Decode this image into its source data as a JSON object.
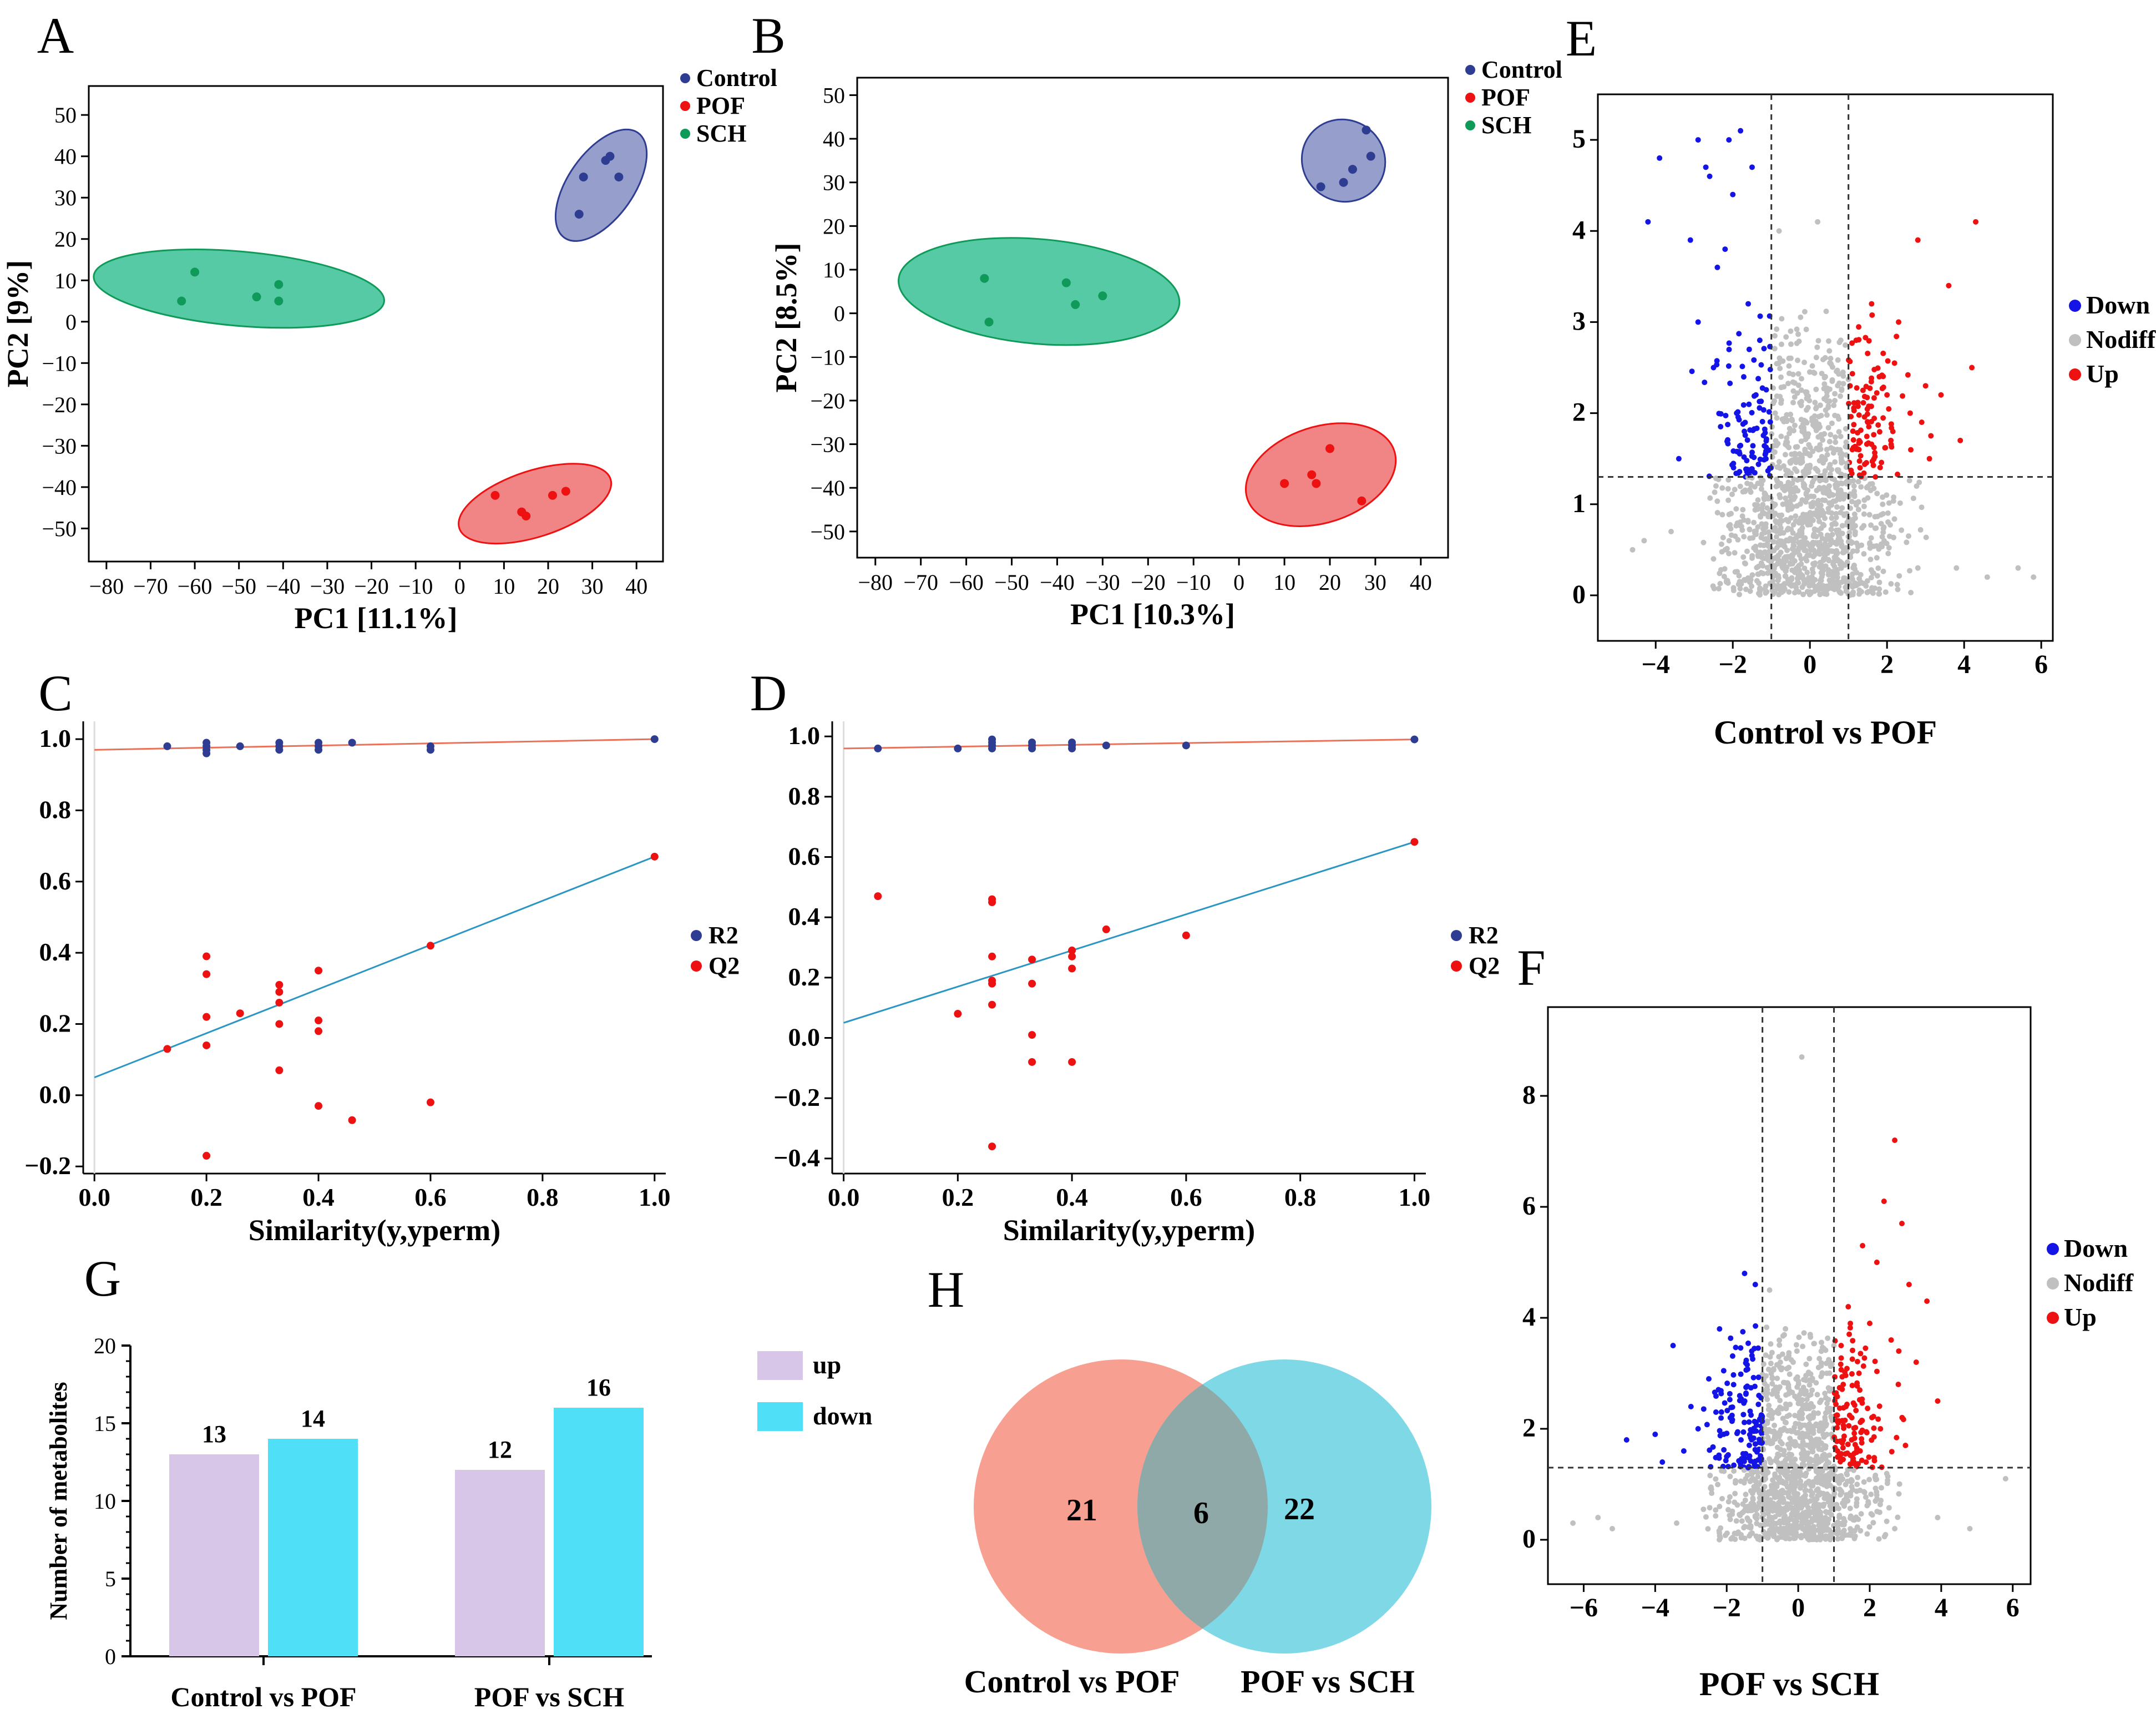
{
  "panel_labels": {
    "A": "A",
    "B": "B",
    "C": "C",
    "D": "D",
    "E": "E",
    "F": "F",
    "G": "G",
    "H": "H"
  },
  "colors": {
    "control": "#2e3d91",
    "pof": "#ee1111",
    "sch": "#0f9a5a",
    "control_fill": "#8b93c7",
    "pof_fill": "#f07777",
    "sch_fill": "#44c49a",
    "down": "#1414e6",
    "nodiff": "#c0c0c0",
    "up": "#ee1111",
    "r2": "#2e3d91",
    "q2": "#ee1111",
    "r2_line": "#e8735a",
    "q2_line": "#2b96c4",
    "bar_up": "#d7c6e8",
    "bar_down": "#4fe0f7",
    "venn_left": "#f7a091",
    "venn_right": "#7ed8e6",
    "venn_overlap": "#8fa8a8"
  },
  "chart_data": [
    {
      "id": "A",
      "type": "scatter",
      "title": "",
      "xlabel": "PC1 [11.1%]",
      "ylabel": "PC2 [9%]",
      "xlim": [
        -84,
        46
      ],
      "ylim": [
        -58,
        57
      ],
      "xticks": [
        -80,
        -70,
        -60,
        -50,
        -40,
        -30,
        -20,
        -10,
        0,
        10,
        20,
        30,
        40
      ],
      "yticks": [
        -50,
        -40,
        -30,
        -20,
        -10,
        0,
        10,
        20,
        30,
        40,
        50
      ],
      "legend": [
        "Control",
        "POF",
        "SCH"
      ],
      "series": [
        {
          "name": "Control",
          "x": [
            27,
            28,
            33,
            34,
            36
          ],
          "y": [
            26,
            35,
            39,
            40,
            35
          ]
        },
        {
          "name": "POF",
          "x": [
            8,
            14,
            15,
            21,
            24
          ],
          "y": [
            -42,
            -46,
            -47,
            -42,
            -41
          ]
        },
        {
          "name": "SCH",
          "x": [
            -63,
            -60,
            -46,
            -41,
            -41
          ],
          "y": [
            5,
            12,
            6,
            5,
            9
          ]
        }
      ],
      "ellipses": [
        {
          "name": "Control",
          "cx": 32,
          "cy": 33,
          "rx": 12,
          "ry": 25
        },
        {
          "name": "POF",
          "cx": 17,
          "cy": -44,
          "rx": 18,
          "ry": 8
        },
        {
          "name": "SCH",
          "cx": -50,
          "cy": 8,
          "rx": 33,
          "ry": 9
        }
      ]
    },
    {
      "id": "B",
      "type": "scatter",
      "title": "",
      "xlabel": "PC1 [10.3%]",
      "ylabel": "PC2 [8.5%]",
      "xlim": [
        -84,
        46
      ],
      "ylim": [
        -56,
        54
      ],
      "xticks": [
        -80,
        -70,
        -60,
        -50,
        -40,
        -30,
        -20,
        -10,
        0,
        10,
        20,
        30,
        40
      ],
      "yticks": [
        -50,
        -40,
        -30,
        -20,
        -10,
        0,
        10,
        20,
        30,
        40,
        50
      ],
      "legend": [
        "Control",
        "POF",
        "SCH"
      ],
      "series": [
        {
          "name": "Control",
          "x": [
            18,
            23,
            25,
            28,
            29
          ],
          "y": [
            29,
            30,
            33,
            42,
            36
          ]
        },
        {
          "name": "POF",
          "x": [
            10,
            16,
            17,
            20,
            27
          ],
          "y": [
            -39,
            -37,
            -39,
            -31,
            -43
          ]
        },
        {
          "name": "SCH",
          "x": [
            -56,
            -55,
            -38,
            -36,
            -30
          ],
          "y": [
            8,
            -2,
            7,
            2,
            4
          ]
        }
      ],
      "ellipses": [
        {
          "name": "Control",
          "cx": 23,
          "cy": 35,
          "rx": 15,
          "ry": 15
        },
        {
          "name": "POF",
          "cx": 18,
          "cy": -37,
          "rx": 17,
          "ry": 11
        },
        {
          "name": "SCH",
          "cx": -44,
          "cy": 5,
          "rx": 31,
          "ry": 12
        }
      ]
    },
    {
      "id": "C",
      "type": "scatter",
      "title": "",
      "xlabel": "Similarity(y,yperm)",
      "ylabel": "",
      "xlim": [
        -0.02,
        1.02
      ],
      "ylim": [
        -0.22,
        1.05
      ],
      "xticks": [
        0.0,
        0.2,
        0.4,
        0.6,
        0.8,
        1.0
      ],
      "yticks": [
        -0.2,
        0.0,
        0.2,
        0.4,
        0.6,
        0.8,
        1.0
      ],
      "legend": [
        "R2",
        "Q2"
      ],
      "series": [
        {
          "name": "R2",
          "x": [
            0.13,
            0.2,
            0.2,
            0.2,
            0.2,
            0.26,
            0.33,
            0.33,
            0.33,
            0.4,
            0.4,
            0.4,
            0.46,
            0.6,
            0.6,
            1.0
          ],
          "y": [
            0.98,
            0.96,
            0.97,
            0.98,
            0.99,
            0.98,
            0.97,
            0.98,
            0.99,
            0.97,
            0.98,
            0.99,
            0.99,
            0.98,
            0.97,
            1.0
          ]
        },
        {
          "name": "Q2",
          "x": [
            0.13,
            0.2,
            0.2,
            0.2,
            0.2,
            0.2,
            0.26,
            0.33,
            0.33,
            0.33,
            0.33,
            0.33,
            0.4,
            0.4,
            0.4,
            0.4,
            0.46,
            0.6,
            0.6,
            1.0
          ],
          "y": [
            0.13,
            0.39,
            0.34,
            0.22,
            0.14,
            -0.17,
            0.23,
            0.31,
            0.29,
            0.26,
            0.2,
            0.07,
            0.35,
            0.21,
            0.18,
            -0.03,
            -0.07,
            0.42,
            -0.02,
            0.67
          ]
        }
      ],
      "fit_lines": [
        {
          "name": "R2",
          "x": [
            0,
            1
          ],
          "y": [
            0.97,
            1.0
          ]
        },
        {
          "name": "Q2",
          "x": [
            0,
            1
          ],
          "y": [
            0.05,
            0.67
          ]
        }
      ]
    },
    {
      "id": "D",
      "type": "scatter",
      "title": "",
      "xlabel": "Similarity(y,yperm)",
      "ylabel": "",
      "xlim": [
        -0.02,
        1.02
      ],
      "ylim": [
        -0.45,
        1.05
      ],
      "xticks": [
        0.0,
        0.2,
        0.4,
        0.6,
        0.8,
        1.0
      ],
      "yticks": [
        -0.4,
        -0.2,
        0.0,
        0.2,
        0.4,
        0.6,
        0.8,
        1.0
      ],
      "legend": [
        "R2",
        "Q2"
      ],
      "series": [
        {
          "name": "R2",
          "x": [
            0.06,
            0.2,
            0.26,
            0.26,
            0.26,
            0.26,
            0.33,
            0.33,
            0.33,
            0.4,
            0.4,
            0.4,
            0.46,
            0.6,
            1.0
          ],
          "y": [
            0.96,
            0.96,
            0.96,
            0.97,
            0.98,
            0.99,
            0.96,
            0.97,
            0.98,
            0.96,
            0.97,
            0.98,
            0.97,
            0.97,
            0.99
          ]
        },
        {
          "name": "Q2",
          "x": [
            0.06,
            0.2,
            0.26,
            0.26,
            0.26,
            0.26,
            0.26,
            0.26,
            0.26,
            0.33,
            0.33,
            0.33,
            0.33,
            0.4,
            0.4,
            0.4,
            0.4,
            0.46,
            0.6,
            1.0
          ],
          "y": [
            0.47,
            0.08,
            0.46,
            0.45,
            0.27,
            0.19,
            0.18,
            0.11,
            -0.36,
            0.26,
            0.18,
            0.01,
            -0.08,
            0.29,
            0.27,
            0.23,
            -0.08,
            0.36,
            0.34,
            0.65
          ]
        }
      ],
      "fit_lines": [
        {
          "name": "R2",
          "x": [
            0,
            1
          ],
          "y": [
            0.96,
            0.99
          ]
        },
        {
          "name": "Q2",
          "x": [
            0,
            1
          ],
          "y": [
            0.05,
            0.65
          ]
        }
      ]
    },
    {
      "id": "E",
      "type": "scatter",
      "title": "Control vs POF",
      "xlabel": "",
      "ylabel": "",
      "xlim": [
        -5.5,
        6.3
      ],
      "ylim": [
        -0.5,
        5.5
      ],
      "xticks": [
        -4,
        -2,
        0,
        2,
        4,
        6
      ],
      "yticks": [
        0,
        1,
        2,
        3,
        4,
        5
      ],
      "legend": [
        "Down",
        "Nodiff",
        "Up"
      ],
      "thresholds": {
        "fc": [
          -1,
          1
        ],
        "p": 1.3
      },
      "series": [
        {
          "name": "Down",
          "x": [
            -4.2,
            -3.9,
            -2.9,
            -2.7,
            -2.6,
            -2.1,
            -2.0,
            -1.8,
            -1.5,
            -3.1,
            -2.4,
            -2.2,
            -1.6,
            -1.3,
            -2.9,
            -2.5,
            -1.9,
            -1.4,
            -3.4,
            -1.7
          ],
          "y": [
            4.1,
            4.8,
            5.0,
            4.7,
            4.6,
            5.0,
            4.4,
            5.1,
            4.7,
            3.9,
            3.6,
            3.8,
            3.2,
            2.8,
            3.0,
            2.5,
            2.0,
            2.2,
            1.5,
            1.8
          ]
        },
        {
          "name": "Nodiff",
          "x": [
            -0.8,
            -0.5,
            -0.2,
            0.1,
            0.4,
            0.7,
            -0.6,
            0.3,
            0.5,
            -0.9,
            0.8,
            0.0,
            -0.3,
            0.6,
            -0.7,
            0.2,
            -4.6,
            -4.3,
            5.4,
            5.8,
            3.8,
            -3.6,
            4.6,
            -2.5,
            2.8
          ],
          "y": [
            4.0,
            2.9,
            1.8,
            0.9,
            2.4,
            1.6,
            0.6,
            0.3,
            1.2,
            2.0,
            2.8,
            1.4,
            0.5,
            0.2,
            1.0,
            4.1,
            0.5,
            0.6,
            0.3,
            0.2,
            0.3,
            0.7,
            0.2,
            0.4,
            0.3
          ]
        },
        {
          "name": "Up",
          "x": [
            4.3,
            2.8,
            3.6,
            4.2,
            1.6,
            2.3,
            3.0,
            3.4,
            1.2,
            1.8,
            2.6,
            3.9,
            1.5,
            2.1,
            3.1,
            1.3,
            2.0,
            2.9,
            1.1,
            1.7
          ],
          "y": [
            4.1,
            3.9,
            3.4,
            2.5,
            3.2,
            3.0,
            2.3,
            2.2,
            2.8,
            2.4,
            2.0,
            1.7,
            1.9,
            1.7,
            1.5,
            1.4,
            2.2,
            1.9,
            1.6,
            1.3
          ]
        }
      ]
    },
    {
      "id": "F",
      "type": "scatter",
      "title": "POF vs SCH",
      "xlabel": "",
      "ylabel": "",
      "xlim": [
        -7.0,
        6.5
      ],
      "ylim": [
        -0.8,
        9.6
      ],
      "xticks": [
        -6,
        -4,
        -2,
        0,
        2,
        4,
        6
      ],
      "yticks": [
        0,
        2,
        4,
        6,
        8
      ],
      "legend": [
        "Down",
        "Nodiff",
        "Up"
      ],
      "thresholds": {
        "fc": [
          -1,
          1
        ],
        "p": 1.3
      },
      "series": [
        {
          "name": "Down",
          "x": [
            -1.5,
            -1.2,
            -2.2,
            -3.5,
            -4.8,
            -3.0,
            -2.5,
            -1.9,
            -1.3,
            -4.0,
            -3.2,
            -2.8,
            -2.0,
            -1.6,
            -1.1,
            -3.8,
            -2.3,
            -1.4
          ],
          "y": [
            4.8,
            4.6,
            3.8,
            3.5,
            1.8,
            2.4,
            2.9,
            2.2,
            3.4,
            1.9,
            1.6,
            2.0,
            1.5,
            1.8,
            2.6,
            1.4,
            2.3,
            1.3
          ]
        },
        {
          "name": "Nodiff",
          "x": [
            0.1,
            -0.8,
            -0.5,
            0.3,
            0.7,
            -0.2,
            0.5,
            -0.6,
            0.8,
            -0.4,
            0.2,
            -6.3,
            -5.6,
            -5.2,
            4.8,
            5.8,
            3.9,
            -3.4,
            -2.2,
            2.7
          ],
          "y": [
            8.7,
            4.5,
            3.2,
            2.6,
            1.9,
            1.1,
            0.5,
            0.2,
            3.0,
            1.6,
            0.8,
            0.3,
            0.4,
            0.2,
            0.2,
            1.1,
            0.4,
            0.3,
            0.6,
            0.2
          ]
        },
        {
          "name": "Up",
          "x": [
            2.7,
            2.4,
            2.9,
            1.8,
            2.2,
            3.1,
            3.6,
            1.4,
            2.0,
            2.6,
            3.3,
            1.2,
            1.7,
            2.8,
            3.9,
            1.5,
            2.3,
            3.0,
            1.1,
            1.9
          ],
          "y": [
            7.2,
            6.1,
            5.7,
            5.3,
            5.0,
            4.6,
            4.3,
            4.2,
            3.9,
            3.6,
            3.2,
            3.5,
            3.0,
            2.8,
            2.5,
            2.2,
            2.0,
            1.7,
            1.6,
            1.4
          ]
        }
      ]
    },
    {
      "id": "G",
      "type": "bar",
      "title": "",
      "xlabel": "",
      "ylabel": "Number of metabolites",
      "ylim": [
        0,
        20
      ],
      "yticks": [
        0,
        5,
        10,
        15,
        20
      ],
      "categories": [
        "Control vs POF",
        "POF vs SCH"
      ],
      "legend": [
        "up",
        "down"
      ],
      "series": [
        {
          "name": "up",
          "values": [
            13,
            12
          ]
        },
        {
          "name": "down",
          "values": [
            14,
            16
          ]
        }
      ]
    },
    {
      "id": "H",
      "type": "venn",
      "title": "",
      "sets": [
        "Control vs POF",
        "POF vs SCH"
      ],
      "left_only": 21,
      "overlap": 6,
      "right_only": 22
    }
  ]
}
